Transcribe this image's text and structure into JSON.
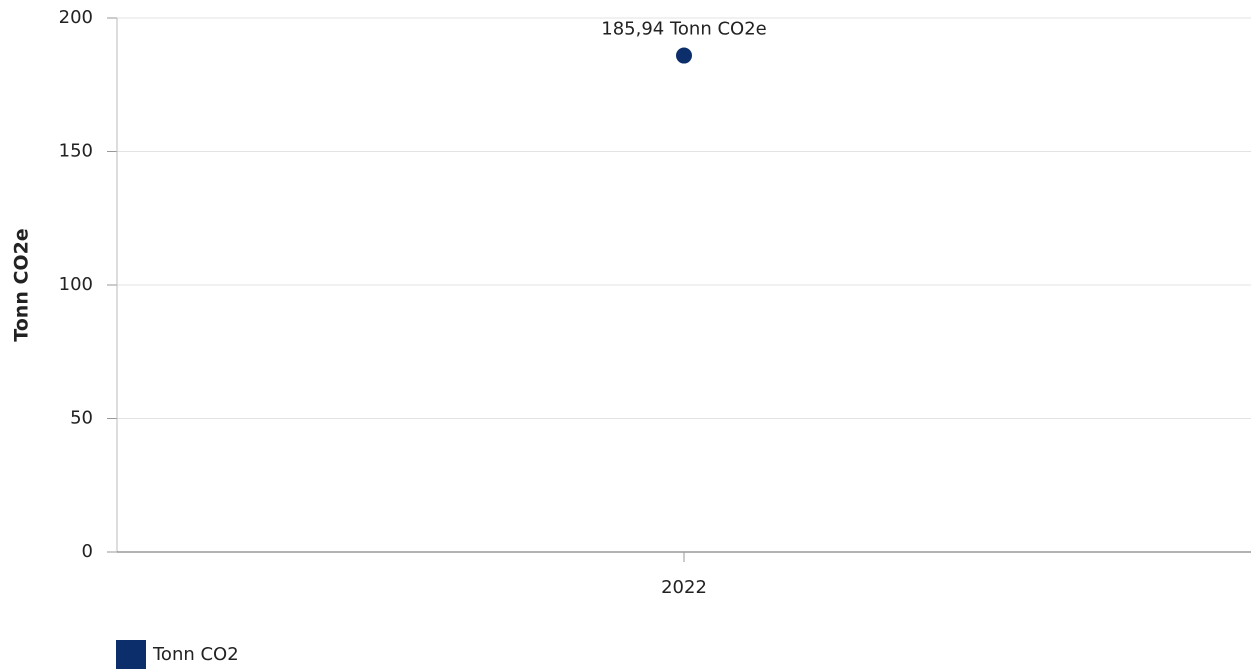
{
  "chart_data": {
    "type": "line",
    "y_label": "Tonn CO2e",
    "categories": [
      "2022"
    ],
    "series": [
      {
        "name": "Tonn CO2",
        "color": "#0c2f6b",
        "values": [
          185.94
        ],
        "value_labels": [
          "185,94 Tonn CO2e"
        ]
      }
    ],
    "ylim": [
      0,
      200
    ],
    "yticks": [
      0,
      50,
      100,
      150,
      200
    ],
    "grid": true,
    "legend": "bottom-left"
  }
}
